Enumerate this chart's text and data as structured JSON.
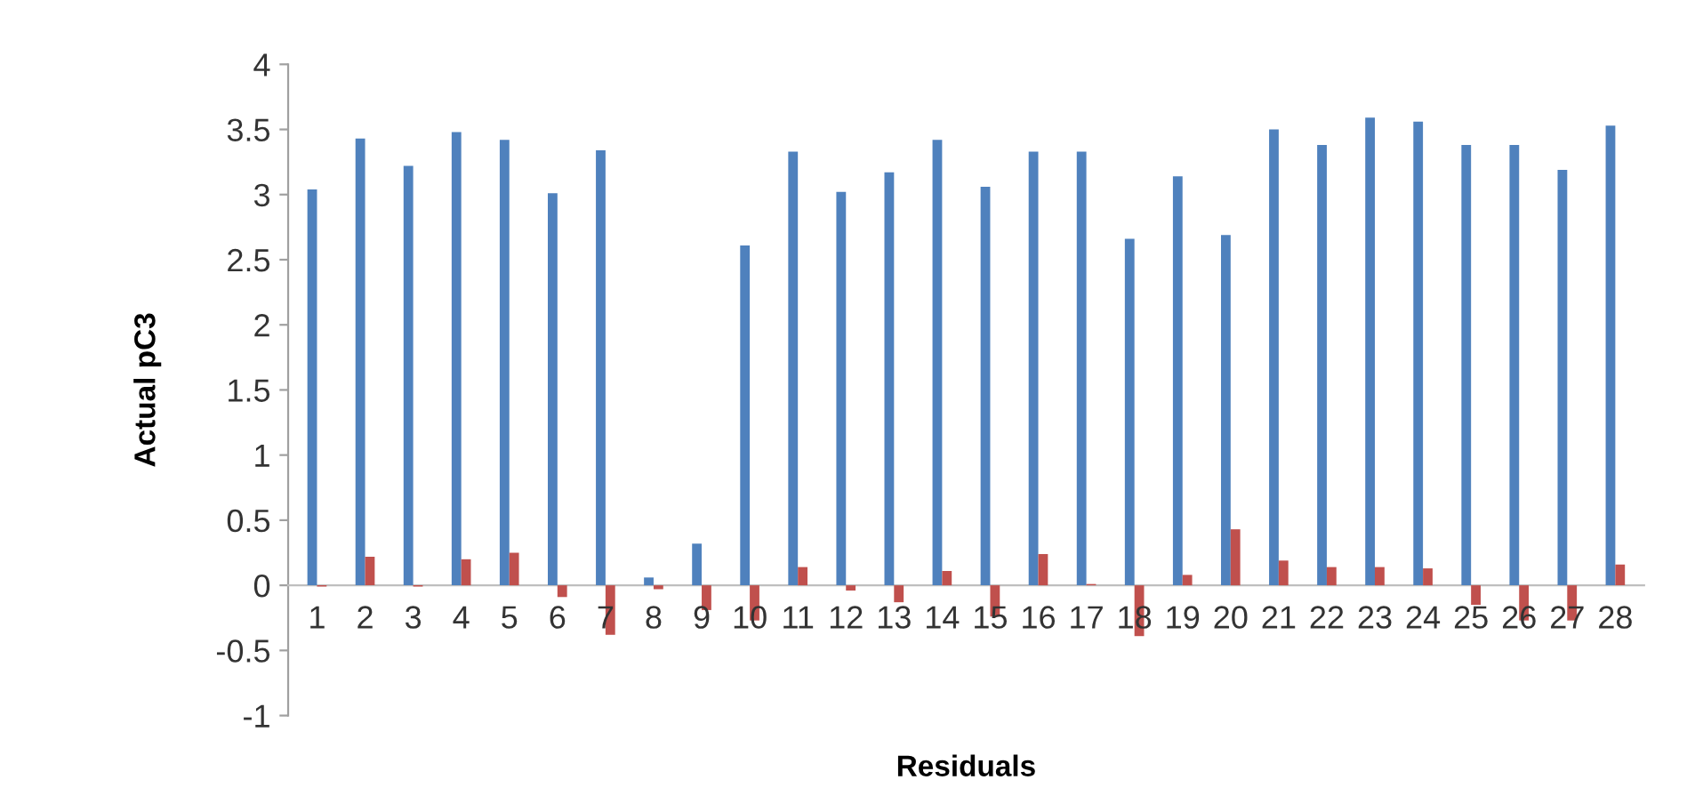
{
  "chart_data": {
    "type": "bar",
    "xlabel": "Residuals",
    "ylabel": "Actual pC3",
    "categories": [
      "1",
      "2",
      "3",
      "4",
      "5",
      "6",
      "7",
      "8",
      "9",
      "10",
      "11",
      "12",
      "13",
      "14",
      "15",
      "16",
      "17",
      "18",
      "19",
      "20",
      "21",
      "22",
      "23",
      "24",
      "25",
      "26",
      "27",
      "28"
    ],
    "series": [
      {
        "color": "#4f81bd",
        "values": [
          3.04,
          3.43,
          3.22,
          3.48,
          3.42,
          3.01,
          3.34,
          0.06,
          0.32,
          2.61,
          3.33,
          3.02,
          3.17,
          3.42,
          3.06,
          3.33,
          3.33,
          2.66,
          3.14,
          2.69,
          3.5,
          3.38,
          3.59,
          3.56,
          3.38,
          3.38,
          3.19,
          3.53
        ]
      },
      {
        "color": "#c0504d",
        "values": [
          -0.01,
          0.22,
          -0.01,
          0.2,
          0.25,
          -0.09,
          -0.38,
          -0.03,
          -0.19,
          -0.27,
          0.14,
          -0.04,
          -0.13,
          0.11,
          -0.24,
          0.24,
          0.01,
          -0.39,
          0.08,
          0.43,
          0.19,
          0.14,
          0.14,
          0.13,
          -0.15,
          -0.27,
          -0.27,
          0.16
        ]
      }
    ],
    "ylim": [
      -1,
      4
    ],
    "yticks": [
      -1,
      -0.5,
      0,
      0.5,
      1,
      1.5,
      2,
      2.5,
      3,
      3.5,
      4
    ],
    "grid": false,
    "legend": false
  }
}
